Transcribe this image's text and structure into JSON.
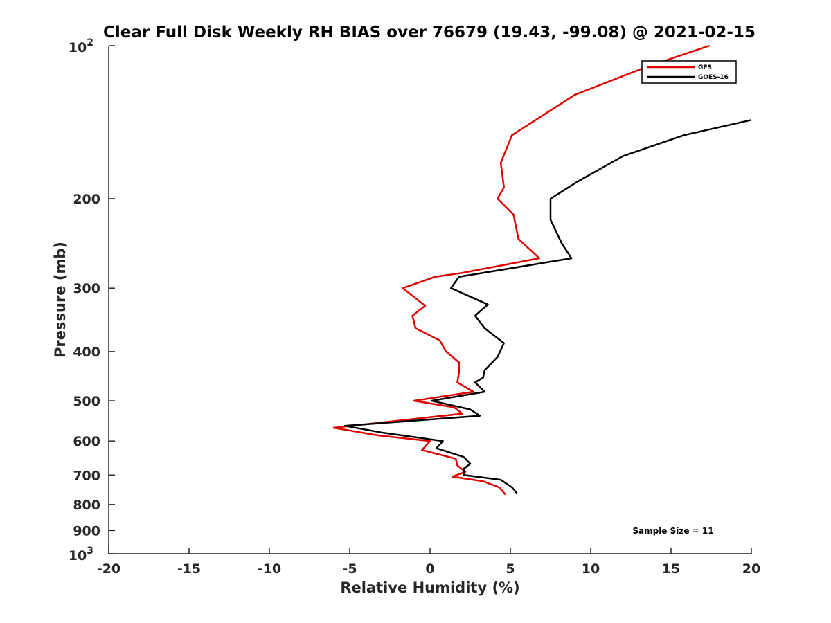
{
  "chart_data": {
    "type": "line",
    "title": "Clear Full Disk Weekly RH BIAS over 76679 (19.43, -99.08) @ 2021-02-15",
    "xlabel": "Relative Humidity (%)",
    "ylabel": "Pressure (mb)",
    "xlim": [
      -20,
      20
    ],
    "ylim": [
      1000,
      100
    ],
    "y_scale": "log",
    "y_reversed": true,
    "grid": false,
    "legend_position": "top-right",
    "annotation": "Sample Size = 11",
    "x_ticks": [
      {
        "value": -20,
        "label": "-20"
      },
      {
        "value": -15,
        "label": "-15"
      },
      {
        "value": -10,
        "label": "-10"
      },
      {
        "value": -5,
        "label": "-5"
      },
      {
        "value": 0,
        "label": "0"
      },
      {
        "value": 5,
        "label": "5"
      },
      {
        "value": 10,
        "label": "10"
      },
      {
        "value": 15,
        "label": "15"
      },
      {
        "value": 20,
        "label": "20"
      }
    ],
    "y_ticks": [
      {
        "value": 100,
        "base": "10",
        "exp": "2"
      },
      {
        "value": 200,
        "base": "200",
        "exp": ""
      },
      {
        "value": 300,
        "base": "300",
        "exp": ""
      },
      {
        "value": 400,
        "base": "400",
        "exp": ""
      },
      {
        "value": 500,
        "base": "500",
        "exp": ""
      },
      {
        "value": 600,
        "base": "600",
        "exp": ""
      },
      {
        "value": 700,
        "base": "700",
        "exp": ""
      },
      {
        "value": 800,
        "base": "800",
        "exp": ""
      },
      {
        "value": 900,
        "base": "900",
        "exp": ""
      },
      {
        "value": 1000,
        "base": "10",
        "exp": "3"
      }
    ],
    "series": [
      {
        "name": "GFS",
        "color": "#e00000",
        "points": [
          {
            "x": 17.4,
            "y": 100
          },
          {
            "x": 13.5,
            "y": 110
          },
          {
            "x": 9.0,
            "y": 125
          },
          {
            "x": 5.1,
            "y": 150
          },
          {
            "x": 4.4,
            "y": 170
          },
          {
            "x": 4.6,
            "y": 190
          },
          {
            "x": 4.2,
            "y": 200
          },
          {
            "x": 5.2,
            "y": 215
          },
          {
            "x": 5.5,
            "y": 240
          },
          {
            "x": 6.8,
            "y": 262
          },
          {
            "x": 2.0,
            "y": 280
          },
          {
            "x": 0.3,
            "y": 285
          },
          {
            "x": -1.7,
            "y": 300
          },
          {
            "x": -0.3,
            "y": 325
          },
          {
            "x": -1.1,
            "y": 340
          },
          {
            "x": -0.9,
            "y": 360
          },
          {
            "x": 0.6,
            "y": 380
          },
          {
            "x": 1.0,
            "y": 400
          },
          {
            "x": 1.8,
            "y": 420
          },
          {
            "x": 1.8,
            "y": 440
          },
          {
            "x": 1.7,
            "y": 460
          },
          {
            "x": 2.7,
            "y": 480
          },
          {
            "x": -1.0,
            "y": 500
          },
          {
            "x": 1.5,
            "y": 515
          },
          {
            "x": 2.0,
            "y": 530
          },
          {
            "x": -6.0,
            "y": 565
          },
          {
            "x": -3.2,
            "y": 585
          },
          {
            "x": 0.0,
            "y": 600
          },
          {
            "x": -0.5,
            "y": 625
          },
          {
            "x": 1.6,
            "y": 650
          },
          {
            "x": 1.7,
            "y": 670
          },
          {
            "x": 2.2,
            "y": 690
          },
          {
            "x": 1.4,
            "y": 705
          },
          {
            "x": 3.3,
            "y": 720
          },
          {
            "x": 4.3,
            "y": 740
          },
          {
            "x": 4.7,
            "y": 765
          }
        ]
      },
      {
        "name": "GOES-16",
        "color": "#000000",
        "points": [
          {
            "x": 20.0,
            "y": 140
          },
          {
            "x": 15.8,
            "y": 150
          },
          {
            "x": 12.0,
            "y": 165
          },
          {
            "x": 9.2,
            "y": 185
          },
          {
            "x": 7.5,
            "y": 200
          },
          {
            "x": 7.5,
            "y": 220
          },
          {
            "x": 8.2,
            "y": 245
          },
          {
            "x": 8.8,
            "y": 262
          },
          {
            "x": 1.8,
            "y": 285
          },
          {
            "x": 1.3,
            "y": 300
          },
          {
            "x": 3.6,
            "y": 323
          },
          {
            "x": 2.8,
            "y": 340
          },
          {
            "x": 3.4,
            "y": 360
          },
          {
            "x": 4.6,
            "y": 385
          },
          {
            "x": 4.2,
            "y": 410
          },
          {
            "x": 3.4,
            "y": 435
          },
          {
            "x": 3.3,
            "y": 450
          },
          {
            "x": 2.8,
            "y": 460
          },
          {
            "x": 3.4,
            "y": 480
          },
          {
            "x": 0.1,
            "y": 500
          },
          {
            "x": 2.5,
            "y": 520
          },
          {
            "x": 3.1,
            "y": 535
          },
          {
            "x": -5.3,
            "y": 560
          },
          {
            "x": -2.9,
            "y": 578
          },
          {
            "x": 0.8,
            "y": 600
          },
          {
            "x": 0.4,
            "y": 620
          },
          {
            "x": 2.1,
            "y": 645
          },
          {
            "x": 2.5,
            "y": 665
          },
          {
            "x": 2.1,
            "y": 680
          },
          {
            "x": 2.1,
            "y": 700
          },
          {
            "x": 4.4,
            "y": 715
          },
          {
            "x": 5.1,
            "y": 740
          },
          {
            "x": 5.4,
            "y": 760
          }
        ]
      }
    ]
  }
}
